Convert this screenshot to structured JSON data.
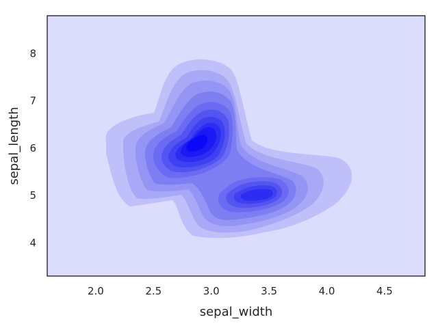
{
  "chart_data": {
    "type": "kde",
    "title": "",
    "xlabel": "sepal_width",
    "ylabel": "sepal_length",
    "xlim": [
      1.58,
      4.85
    ],
    "ylim": [
      3.3,
      8.8
    ],
    "x_ticks": [
      2.0,
      2.5,
      3.0,
      3.5,
      4.0,
      4.5
    ],
    "x_tick_labels": [
      "2.0",
      "2.5",
      "3.0",
      "3.5",
      "4.0",
      "4.5"
    ],
    "y_ticks": [
      4,
      5,
      6,
      7,
      8
    ],
    "y_tick_labels": [
      "4",
      "5",
      "6",
      "7",
      "8"
    ],
    "grid": false,
    "shade": true,
    "levels": 10,
    "base_color": "#0000ff",
    "background_color": "#dcdcfc",
    "modes": [
      {
        "sepal_width": 2.85,
        "sepal_length": 6.15,
        "density": 1.0
      },
      {
        "sepal_width": 3.08,
        "sepal_length": 6.6,
        "density": 0.7
      },
      {
        "sepal_width": 3.42,
        "sepal_length": 5.02,
        "density": 0.72
      }
    ]
  }
}
